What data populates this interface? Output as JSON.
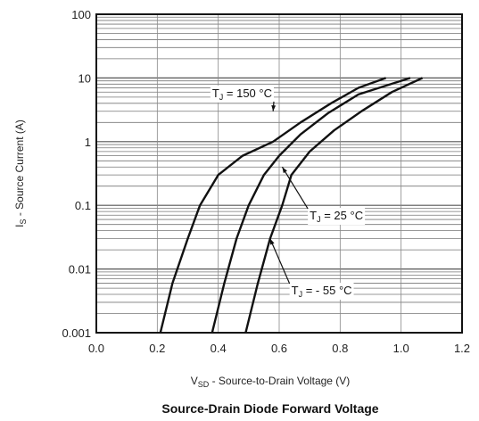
{
  "chart_data": {
    "type": "line",
    "title": "Source-Drain Diode Forward Voltage",
    "xlabel": {
      "main": "V",
      "sub": "SD",
      "rest": " - Source-to-Drain Voltage (V)"
    },
    "ylabel": {
      "main": "I",
      "sub": "S",
      "rest": " - Source Current (A)"
    },
    "xlim": [
      0.0,
      1.2
    ],
    "ylim": [
      0.001,
      100
    ],
    "yscale": "log",
    "grid": true,
    "x_ticks": [
      "0.0",
      "0.2",
      "0.4",
      "0.6",
      "0.8",
      "1.0",
      "1.2"
    ],
    "y_ticks": [
      "0.001",
      "0.01",
      "0.1",
      "1",
      "10",
      "100"
    ],
    "series": [
      {
        "name": {
          "main": "T",
          "sub": "J",
          "rest": " = 150 °C"
        },
        "points": [
          [
            0.21,
            0.001
          ],
          [
            0.25,
            0.006
          ],
          [
            0.3,
            0.03
          ],
          [
            0.34,
            0.1
          ],
          [
            0.4,
            0.3
          ],
          [
            0.48,
            0.6
          ],
          [
            0.58,
            1.0
          ],
          [
            0.67,
            2.0
          ],
          [
            0.77,
            4.0
          ],
          [
            0.86,
            7.0
          ],
          [
            0.95,
            10.0
          ]
        ]
      },
      {
        "name": {
          "main": "T",
          "sub": "J",
          "rest": " = 25 °C"
        },
        "points": [
          [
            0.38,
            0.001
          ],
          [
            0.42,
            0.006
          ],
          [
            0.46,
            0.03
          ],
          [
            0.5,
            0.1
          ],
          [
            0.55,
            0.3
          ],
          [
            0.6,
            0.6
          ],
          [
            0.67,
            1.3
          ],
          [
            0.76,
            2.8
          ],
          [
            0.86,
            5.5
          ],
          [
            1.03,
            10.0
          ]
        ]
      },
      {
        "name": {
          "main": "T",
          "sub": "J",
          "rest": " = - 55 °C"
        },
        "points": [
          [
            0.49,
            0.001
          ],
          [
            0.53,
            0.006
          ],
          [
            0.57,
            0.03
          ],
          [
            0.61,
            0.1
          ],
          [
            0.64,
            0.3
          ],
          [
            0.7,
            0.7
          ],
          [
            0.78,
            1.5
          ],
          [
            0.87,
            3.0
          ],
          [
            0.97,
            6.0
          ],
          [
            1.07,
            10.0
          ]
        ]
      }
    ],
    "annotations": [
      {
        "series": 0,
        "label_at": [
          0.38,
          5.0
        ],
        "arrow_to": [
          0.58,
          3.0
        ]
      },
      {
        "series": 1,
        "label_at": [
          0.7,
          0.06
        ],
        "arrow_to": [
          0.61,
          0.4
        ]
      },
      {
        "series": 2,
        "label_at": [
          0.64,
          0.004
        ],
        "arrow_to": [
          0.57,
          0.03
        ]
      }
    ]
  }
}
